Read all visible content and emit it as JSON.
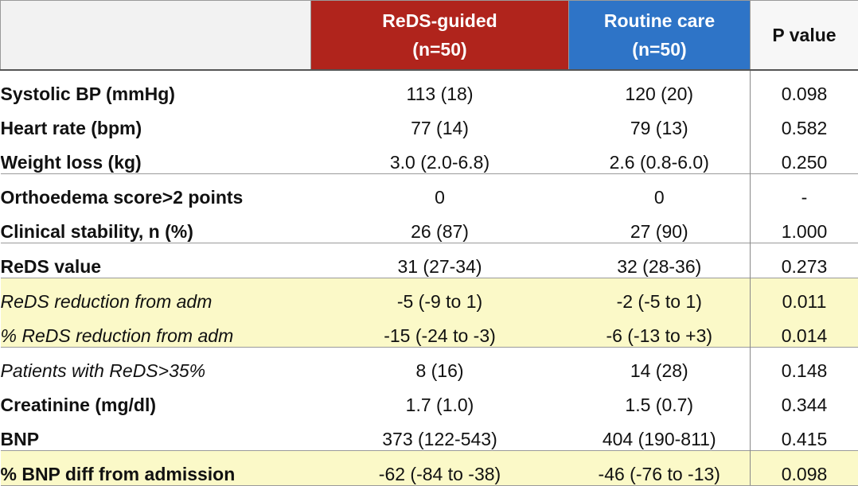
{
  "colors": {
    "reds_header": "#b0241c",
    "routine_header": "#2e74c7",
    "highlight": "#fbf9c8"
  },
  "header": {
    "col0": "",
    "reds_line1": "ReDS-guided",
    "reds_line2": "(n=50)",
    "routine_line1": "Routine care",
    "routine_line2": "(n=50)",
    "pvalue": "P value"
  },
  "rows": [
    {
      "label": "Systolic BP (mmHg)",
      "reds": "113 (18)",
      "routine": "120 (20)",
      "p": "0.098",
      "italic": false,
      "highlight": false,
      "group_start": false
    },
    {
      "label": "Heart rate (bpm)",
      "reds": "77 (14)",
      "routine": "79 (13)",
      "p": "0.582",
      "italic": false,
      "highlight": false,
      "group_start": false
    },
    {
      "label": "Weight loss (kg)",
      "reds": "3.0 (2.0-6.8)",
      "routine": "2.6 (0.8-6.0)",
      "p": "0.250",
      "italic": false,
      "highlight": false,
      "group_start": false
    },
    {
      "label": "Orthoedema score>2 points",
      "reds": "0",
      "routine": "0",
      "p": "-",
      "italic": false,
      "highlight": false,
      "group_start": true
    },
    {
      "label": "Clinical stability, n (%)",
      "reds": "26 (87)",
      "routine": "27 (90)",
      "p": "1.000",
      "italic": false,
      "highlight": false,
      "group_start": false
    },
    {
      "label": "ReDS value",
      "reds": "31 (27-34)",
      "routine": "32 (28-36)",
      "p": "0.273",
      "italic": false,
      "highlight": false,
      "group_start": true
    },
    {
      "label": "ReDS reduction from adm",
      "reds": "-5 (-9 to 1)",
      "routine": "-2 (-5 to 1)",
      "p": "0.011",
      "italic": true,
      "highlight": true,
      "group_start": true
    },
    {
      "label": "% ReDS reduction from adm",
      "reds": "-15 (-24 to -3)",
      "routine": "-6 (-13 to +3)",
      "p": "0.014",
      "italic": true,
      "highlight": true,
      "group_start": false
    },
    {
      "label": "Patients with ReDS>35%",
      "reds": "8 (16)",
      "routine": "14 (28)",
      "p": "0.148",
      "italic": true,
      "highlight": false,
      "group_start": true
    },
    {
      "label": "Creatinine (mg/dl)",
      "reds": "1.7 (1.0)",
      "routine": "1.5 (0.7)",
      "p": "0.344",
      "italic": false,
      "highlight": false,
      "group_start": false
    },
    {
      "label": "BNP",
      "reds": "373 (122-543)",
      "routine": "404 (190-811)",
      "p": "0.415",
      "italic": false,
      "highlight": false,
      "group_start": false
    },
    {
      "label": "% BNP diff from admission",
      "reds": "-62 (-84 to -38)",
      "routine": "-46 (-76 to -13)",
      "p": "0.098",
      "italic": false,
      "highlight": true,
      "group_start": true
    }
  ]
}
